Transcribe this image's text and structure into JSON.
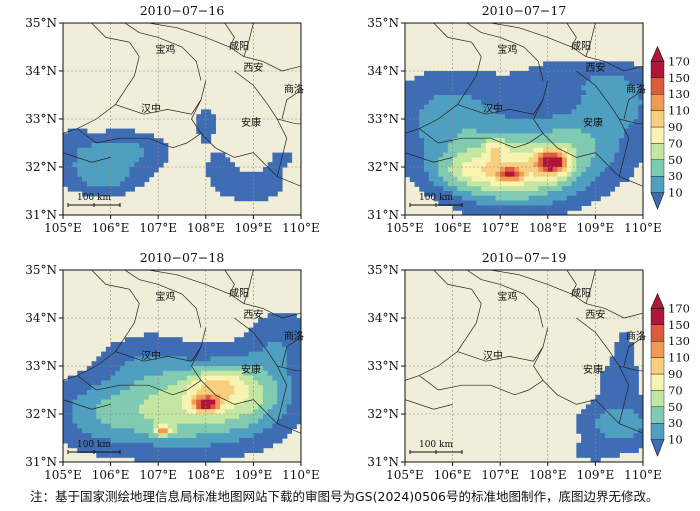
{
  "figure": {
    "note": "注：基于国家测绘地理信息局标准地图网站下载的审图号为GS(2024)0506号的标准地图制作，底图边界无修改。"
  },
  "panels": [
    {
      "title": "2010−07−16",
      "has_colorbar": false
    },
    {
      "title": "2010−07−17",
      "has_colorbar": true
    },
    {
      "title": "2010−07−18",
      "has_colorbar": false
    },
    {
      "title": "2010−07−19",
      "has_colorbar": true
    }
  ],
  "map": {
    "lon_ticks": [
      "105°E",
      "106°E",
      "107°E",
      "108°E",
      "109°E",
      "110°E"
    ],
    "lat_ticks": [
      "31°N",
      "32°N",
      "33°N",
      "34°N",
      "35°N"
    ],
    "extent": {
      "lon": [
        105,
        110
      ],
      "lat": [
        31,
        35
      ]
    },
    "scale_bar": "100 km",
    "background_color": "#f0edd8",
    "cities": [
      {
        "name": "宝鸡",
        "lon": 107.15,
        "lat": 34.37
      },
      {
        "name": "咸阳",
        "lon": 108.7,
        "lat": 34.45
      },
      {
        "name": "西安",
        "lon": 109.0,
        "lat": 34.0
      },
      {
        "name": "商洛",
        "lon": 109.85,
        "lat": 33.55
      },
      {
        "name": "汉中",
        "lon": 106.85,
        "lat": 33.15
      },
      {
        "name": "安康",
        "lon": 108.95,
        "lat": 32.85
      }
    ]
  },
  "colorbar": {
    "ticks": [
      "10",
      "30",
      "50",
      "70",
      "90",
      "110",
      "130",
      "150",
      "170"
    ],
    "colors": [
      "#3f6db3",
      "#4f9fc0",
      "#7fcab0",
      "#c4e6a3",
      "#f6f4b0",
      "#f8cf7e",
      "#f09a54",
      "#de5a3e",
      "#b0153a"
    ]
  }
}
